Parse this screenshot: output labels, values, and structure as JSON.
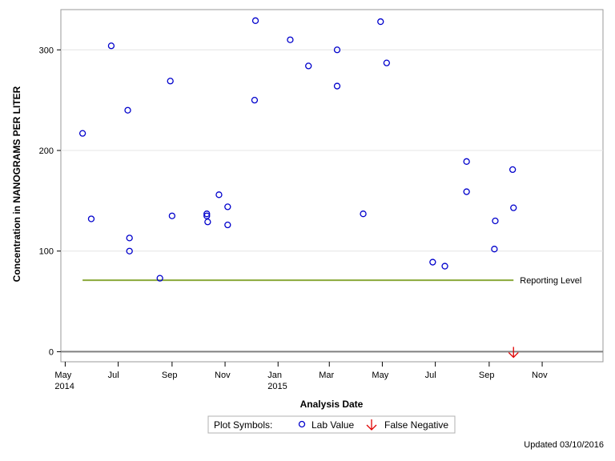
{
  "chart_data": {
    "type": "scatter",
    "title": "",
    "xlabel": "Analysis Date",
    "ylabel": "Concentration in NANOGRAMS PER LITER",
    "xlim": [
      "2014-04-26",
      "2016-01-10"
    ],
    "ylim": [
      -10,
      340
    ],
    "x_ticks": [
      {
        "date": "2014-05-01",
        "label": "May",
        "sub": "2014"
      },
      {
        "date": "2014-07-01",
        "label": "Jul",
        "sub": ""
      },
      {
        "date": "2014-09-01",
        "label": "Sep",
        "sub": ""
      },
      {
        "date": "2014-11-01",
        "label": "Nov",
        "sub": ""
      },
      {
        "date": "2015-01-01",
        "label": "Jan",
        "sub": "2015"
      },
      {
        "date": "2015-03-01",
        "label": "Mar",
        "sub": ""
      },
      {
        "date": "2015-05-01",
        "label": "May",
        "sub": ""
      },
      {
        "date": "2015-07-01",
        "label": "Jul",
        "sub": ""
      },
      {
        "date": "2015-09-01",
        "label": "Sep",
        "sub": ""
      },
      {
        "date": "2015-11-01",
        "label": "Nov",
        "sub": ""
      }
    ],
    "y_ticks": [
      {
        "value": 0,
        "label": "0"
      },
      {
        "value": 100,
        "label": "100"
      },
      {
        "value": 200,
        "label": "200"
      },
      {
        "value": 300,
        "label": "300"
      }
    ],
    "grid": "horizontal",
    "series": [
      {
        "name": "Lab Value",
        "marker": "circle",
        "color": "#0000cc",
        "points": [
          {
            "x": "2014-05-21",
            "y": 217
          },
          {
            "x": "2014-05-31",
            "y": 132
          },
          {
            "x": "2014-06-23",
            "y": 304
          },
          {
            "x": "2014-07-12",
            "y": 240
          },
          {
            "x": "2014-07-14",
            "y": 113
          },
          {
            "x": "2014-07-14",
            "y": 100
          },
          {
            "x": "2014-08-18",
            "y": 73
          },
          {
            "x": "2014-08-30",
            "y": 269
          },
          {
            "x": "2014-09-01",
            "y": 135
          },
          {
            "x": "2014-10-11",
            "y": 137
          },
          {
            "x": "2014-10-11",
            "y": 135
          },
          {
            "x": "2014-10-12",
            "y": 129
          },
          {
            "x": "2014-10-25",
            "y": 156
          },
          {
            "x": "2014-11-04",
            "y": 144
          },
          {
            "x": "2014-11-04",
            "y": 126
          },
          {
            "x": "2014-12-06",
            "y": 329
          },
          {
            "x": "2014-12-05",
            "y": 250
          },
          {
            "x": "2015-01-15",
            "y": 310
          },
          {
            "x": "2015-02-05",
            "y": 284
          },
          {
            "x": "2015-03-10",
            "y": 300
          },
          {
            "x": "2015-03-10",
            "y": 264
          },
          {
            "x": "2015-04-09",
            "y": 137
          },
          {
            "x": "2015-04-29",
            "y": 328
          },
          {
            "x": "2015-05-06",
            "y": 287
          },
          {
            "x": "2015-06-28",
            "y": 89
          },
          {
            "x": "2015-07-12",
            "y": 85
          },
          {
            "x": "2015-08-06",
            "y": 189
          },
          {
            "x": "2015-08-06",
            "y": 159
          },
          {
            "x": "2015-09-07",
            "y": 102
          },
          {
            "x": "2015-09-08",
            "y": 130
          },
          {
            "x": "2015-09-28",
            "y": 181
          },
          {
            "x": "2015-09-29",
            "y": 143
          }
        ]
      },
      {
        "name": "False Negative",
        "marker": "arrow-down",
        "color": "#e00000",
        "points": [
          {
            "x": "2015-09-29",
            "y": 0
          }
        ]
      }
    ],
    "reference_lines": [
      {
        "label": "Reporting Level",
        "y": 71,
        "x_start": "2014-05-21",
        "x_end": "2015-09-29",
        "color": "#8aa83a"
      },
      {
        "label": "",
        "y": 0,
        "color": "#808080"
      }
    ],
    "legend": {
      "title": "Plot Symbols:",
      "placement": "bottom-center",
      "entries": [
        {
          "label": "Lab Value",
          "marker": "circle",
          "color": "#0000cc"
        },
        {
          "label": "False Negative",
          "marker": "arrow-down",
          "color": "#e00000"
        }
      ]
    }
  },
  "footer": {
    "updated": "Updated 03/10/2016"
  }
}
